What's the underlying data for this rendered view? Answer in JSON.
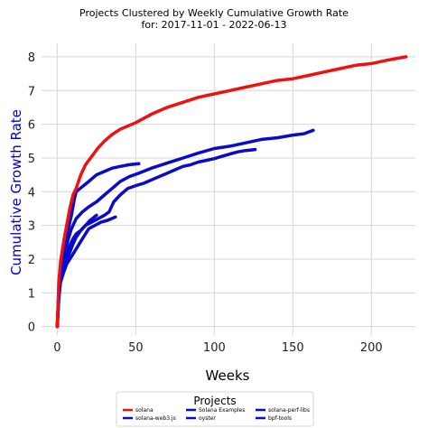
{
  "chart_data": {
    "type": "line",
    "title": "Projects Clustered by Weekly Cumulative Growth Rate",
    "subtitle": "for: 2017-11-01 - 2022-06-13",
    "xlabel": "Weeks",
    "ylabel": "Cumulative Growth Rate",
    "xlim": [
      -10,
      228
    ],
    "ylim": [
      -0.25,
      8.4
    ],
    "xticks": [
      0,
      50,
      100,
      150,
      200
    ],
    "yticks": [
      0,
      1,
      2,
      3,
      4,
      5,
      6,
      7,
      8
    ],
    "grid": true,
    "legend": {
      "title": "Projects",
      "placement": "bottom-center",
      "columns": 3
    },
    "colors": {
      "red": "#ee1111",
      "blue": "#0a0acc",
      "grid": "#d5d5d5"
    },
    "series": [
      {
        "name": "solana",
        "color": "#ee1111",
        "points": [
          [
            0,
            0
          ],
          [
            1,
            1.3
          ],
          [
            2,
            1.9
          ],
          [
            4,
            2.5
          ],
          [
            6,
            3.0
          ],
          [
            8,
            3.5
          ],
          [
            10,
            3.9
          ],
          [
            12,
            4.1
          ],
          [
            15,
            4.5
          ],
          [
            18,
            4.8
          ],
          [
            22,
            5.05
          ],
          [
            26,
            5.3
          ],
          [
            30,
            5.5
          ],
          [
            35,
            5.7
          ],
          [
            40,
            5.85
          ],
          [
            50,
            6.05
          ],
          [
            60,
            6.3
          ],
          [
            70,
            6.5
          ],
          [
            80,
            6.65
          ],
          [
            90,
            6.8
          ],
          [
            100,
            6.9
          ],
          [
            110,
            7.0
          ],
          [
            120,
            7.1
          ],
          [
            130,
            7.2
          ],
          [
            140,
            7.3
          ],
          [
            150,
            7.35
          ],
          [
            160,
            7.45
          ],
          [
            170,
            7.55
          ],
          [
            180,
            7.65
          ],
          [
            190,
            7.75
          ],
          [
            200,
            7.8
          ],
          [
            210,
            7.9
          ],
          [
            222,
            8.0
          ]
        ]
      },
      {
        "name": "solana-web3.js",
        "color": "#0a0acc",
        "points": [
          [
            0,
            0
          ],
          [
            1,
            1.0
          ],
          [
            2,
            1.6
          ],
          [
            3,
            1.9
          ],
          [
            5,
            2.4
          ],
          [
            7,
            2.9
          ],
          [
            9,
            3.3
          ],
          [
            11,
            3.8
          ],
          [
            12,
            4.0
          ],
          [
            16,
            4.15
          ],
          [
            20,
            4.3
          ],
          [
            25,
            4.5
          ],
          [
            30,
            4.6
          ],
          [
            35,
            4.7
          ],
          [
            40,
            4.75
          ],
          [
            46,
            4.8
          ],
          [
            52,
            4.83
          ]
        ]
      },
      {
        "name": "Solana Examples",
        "color": "#0a0acc",
        "points": [
          [
            0,
            0
          ],
          [
            1,
            0.9
          ],
          [
            2,
            1.4
          ],
          [
            4,
            1.75
          ],
          [
            6,
            2.1
          ],
          [
            8,
            2.4
          ],
          [
            10,
            2.6
          ],
          [
            12,
            2.75
          ],
          [
            15,
            2.85
          ],
          [
            18,
            3.0
          ],
          [
            22,
            3.1
          ],
          [
            26,
            3.2
          ],
          [
            30,
            3.3
          ],
          [
            33,
            3.4
          ],
          [
            36,
            3.7
          ],
          [
            40,
            3.9
          ],
          [
            45,
            4.1
          ],
          [
            50,
            4.18
          ],
          [
            55,
            4.25
          ],
          [
            60,
            4.35
          ],
          [
            65,
            4.45
          ],
          [
            70,
            4.55
          ],
          [
            75,
            4.65
          ],
          [
            80,
            4.75
          ],
          [
            85,
            4.8
          ],
          [
            90,
            4.88
          ],
          [
            95,
            4.93
          ],
          [
            100,
            4.98
          ],
          [
            105,
            5.05
          ],
          [
            110,
            5.12
          ],
          [
            115,
            5.18
          ],
          [
            120,
            5.22
          ],
          [
            126,
            5.25
          ]
        ]
      },
      {
        "name": "oyster",
        "color": "#0a0acc",
        "points": [
          [
            0,
            0
          ],
          [
            1,
            0.8
          ],
          [
            2,
            1.3
          ],
          [
            4,
            1.6
          ],
          [
            6,
            1.85
          ],
          [
            8,
            2.0
          ],
          [
            10,
            2.15
          ],
          [
            12,
            2.3
          ],
          [
            14,
            2.45
          ],
          [
            16,
            2.6
          ],
          [
            18,
            2.75
          ],
          [
            20,
            2.9
          ],
          [
            24,
            3.0
          ],
          [
            28,
            3.1
          ],
          [
            32,
            3.15
          ],
          [
            37,
            3.25
          ]
        ]
      },
      {
        "name": "solana-perf-libs",
        "color": "#0a0acc",
        "points": [
          [
            0,
            0
          ],
          [
            1,
            1.0
          ],
          [
            2,
            1.5
          ],
          [
            3,
            1.8
          ],
          [
            5,
            2.2
          ],
          [
            7,
            2.6
          ],
          [
            9,
            2.9
          ],
          [
            12,
            3.2
          ],
          [
            16,
            3.4
          ],
          [
            20,
            3.55
          ],
          [
            25,
            3.7
          ],
          [
            30,
            3.9
          ],
          [
            35,
            4.1
          ],
          [
            40,
            4.3
          ],
          [
            46,
            4.45
          ],
          [
            52,
            4.55
          ],
          [
            60,
            4.7
          ],
          [
            70,
            4.85
          ],
          [
            80,
            5.0
          ],
          [
            90,
            5.15
          ],
          [
            100,
            5.28
          ],
          [
            110,
            5.35
          ],
          [
            120,
            5.45
          ],
          [
            130,
            5.55
          ],
          [
            140,
            5.6
          ],
          [
            150,
            5.68
          ],
          [
            157,
            5.72
          ],
          [
            163,
            5.82
          ]
        ]
      },
      {
        "name": "bpf-tools",
        "color": "#0a0acc",
        "points": [
          [
            0,
            0
          ],
          [
            1,
            0.9
          ],
          [
            2,
            1.4
          ],
          [
            4,
            1.7
          ],
          [
            6,
            1.95
          ],
          [
            8,
            2.2
          ],
          [
            10,
            2.45
          ],
          [
            12,
            2.65
          ],
          [
            15,
            2.85
          ],
          [
            18,
            3.0
          ],
          [
            21,
            3.15
          ],
          [
            25,
            3.3
          ]
        ]
      }
    ]
  }
}
